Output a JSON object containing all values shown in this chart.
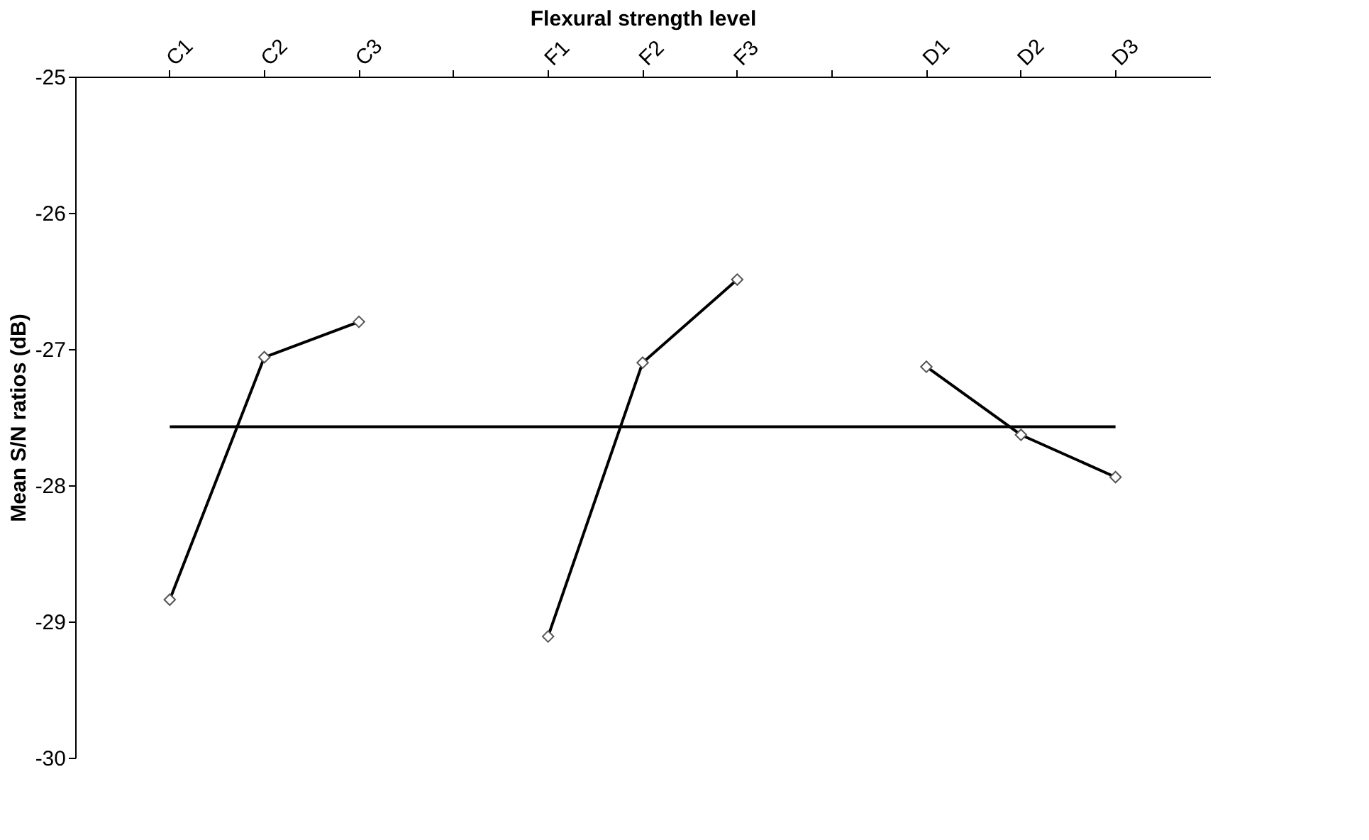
{
  "chart_data": {
    "type": "line",
    "xlabel": "Flexural strength level",
    "ylabel": "Mean S/N ratios (dB)",
    "categories": [
      "C1",
      "C2",
      "C3",
      null,
      "F1",
      "F2",
      "F3",
      null,
      "D1",
      "D2",
      "D3"
    ],
    "series": [
      {
        "color": "#000000",
        "values": [
          -28.84,
          -27.06,
          -26.8,
          null,
          -29.11,
          -27.1,
          -26.49,
          null,
          -27.13,
          -27.63,
          -27.94
        ]
      }
    ],
    "ref_lines": [
      {
        "axis": "y",
        "value": -27.57,
        "color": "#000000"
      }
    ],
    "ylim": [
      -30,
      -25
    ],
    "yticks": [
      -30,
      -29,
      -28,
      -27,
      -26,
      -25
    ],
    "marker": "diamond",
    "grid": false
  }
}
